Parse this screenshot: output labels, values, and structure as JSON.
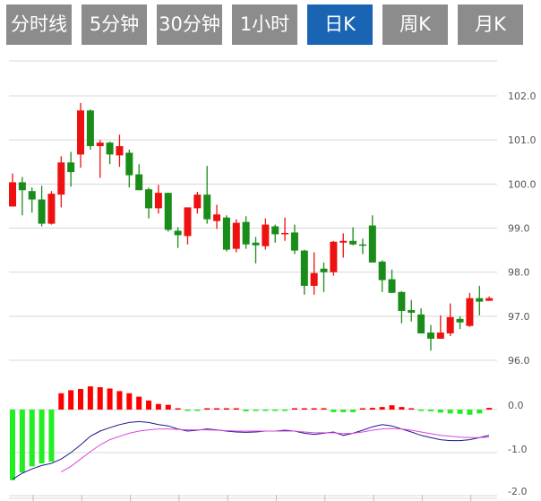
{
  "tabs": [
    {
      "label": "分时线",
      "active": false
    },
    {
      "label": "5分钟",
      "active": false
    },
    {
      "label": "30分钟",
      "active": false
    },
    {
      "label": "1小时",
      "active": false
    },
    {
      "label": "日K",
      "active": true
    },
    {
      "label": "周K",
      "active": false
    },
    {
      "label": "月K",
      "active": false
    }
  ],
  "colors": {
    "up": "#ee1111",
    "down": "#1a8c1a",
    "hist_up": "#ff0000",
    "hist_down": "#22ee22",
    "dif": "#1a1a8c",
    "dea": "#dd44dd",
    "tab": "#8c8c8c",
    "tab_active": "#1a64b4",
    "grid": "#d8d8d8"
  },
  "chart_data": [
    {
      "type": "candlestick",
      "ylim": [
        95.8,
        102.2
      ],
      "yticks": [
        "102.0",
        "101.0",
        "100.0",
        "99.0",
        "98.0",
        "97.0",
        "96.0"
      ],
      "grid": true,
      "ohlc": [
        [
          99.49,
          100.24,
          99.49,
          100.04
        ],
        [
          100.04,
          100.16,
          99.29,
          99.86
        ],
        [
          99.84,
          99.92,
          99.35,
          99.65
        ],
        [
          99.65,
          99.96,
          99.04,
          99.1
        ],
        [
          99.1,
          99.84,
          99.08,
          99.78
        ],
        [
          99.76,
          100.63,
          99.47,
          100.49
        ],
        [
          100.49,
          100.73,
          99.94,
          100.27
        ],
        [
          100.67,
          101.84,
          100.37,
          101.67
        ],
        [
          101.67,
          101.69,
          100.78,
          100.86
        ],
        [
          100.86,
          101.0,
          100.14,
          100.94
        ],
        [
          100.94,
          100.96,
          100.45,
          100.67
        ],
        [
          100.65,
          101.12,
          100.39,
          100.86
        ],
        [
          100.71,
          100.78,
          99.92,
          100.2
        ],
        [
          100.22,
          100.45,
          99.86,
          99.86
        ],
        [
          99.88,
          99.92,
          99.22,
          99.45
        ],
        [
          99.45,
          99.98,
          99.33,
          99.8
        ],
        [
          99.8,
          99.8,
          98.92,
          98.96
        ],
        [
          98.94,
          99.02,
          98.55,
          98.84
        ],
        [
          98.82,
          99.47,
          98.63,
          99.47
        ],
        [
          99.45,
          99.82,
          99.33,
          99.76
        ],
        [
          99.76,
          100.41,
          99.1,
          99.2
        ],
        [
          99.16,
          99.53,
          98.98,
          99.31
        ],
        [
          99.24,
          99.29,
          98.47,
          98.51
        ],
        [
          98.53,
          99.2,
          98.45,
          99.12
        ],
        [
          99.14,
          99.27,
          98.53,
          98.63
        ],
        [
          98.67,
          98.8,
          98.2,
          98.61
        ],
        [
          98.59,
          99.22,
          98.51,
          99.08
        ],
        [
          99.04,
          99.08,
          98.67,
          98.86
        ],
        [
          98.87,
          99.24,
          98.71,
          98.89
        ],
        [
          98.9,
          99.08,
          98.41,
          98.49
        ],
        [
          98.49,
          98.51,
          97.49,
          97.69
        ],
        [
          97.69,
          98.45,
          97.49,
          97.98
        ],
        [
          98.08,
          98.22,
          97.55,
          98.0
        ],
        [
          98.0,
          98.71,
          97.92,
          98.69
        ],
        [
          98.67,
          98.88,
          98.33,
          98.71
        ],
        [
          98.71,
          99.02,
          98.61,
          98.63
        ],
        [
          98.63,
          98.76,
          98.41,
          98.61
        ],
        [
          99.06,
          99.29,
          98.22,
          98.22
        ],
        [
          98.24,
          98.27,
          97.55,
          97.82
        ],
        [
          97.84,
          98.06,
          97.53,
          97.53
        ],
        [
          97.55,
          97.57,
          96.84,
          97.12
        ],
        [
          97.14,
          97.37,
          96.88,
          97.08
        ],
        [
          97.04,
          97.18,
          96.61,
          96.61
        ],
        [
          96.63,
          96.8,
          96.22,
          96.49
        ],
        [
          96.49,
          97.02,
          96.49,
          96.63
        ],
        [
          96.61,
          97.29,
          96.55,
          96.98
        ],
        [
          96.94,
          97.0,
          96.71,
          96.86
        ],
        [
          96.78,
          97.53,
          96.76,
          97.41
        ],
        [
          97.41,
          97.69,
          97.02,
          97.33
        ],
        [
          97.35,
          97.45,
          97.35,
          97.41
        ]
      ]
    },
    {
      "type": "macd",
      "ylim": [
        -2.0,
        0.3
      ],
      "yticks": [
        "0.0",
        "-1.0",
        "-2.0"
      ],
      "histogram": [
        -1.64,
        -1.46,
        -1.32,
        -1.25,
        -1.21,
        0.38,
        0.45,
        0.48,
        0.54,
        0.52,
        0.49,
        0.43,
        0.38,
        0.3,
        0.21,
        0.13,
        0.11,
        0.02,
        -0.02,
        -0.02,
        0.02,
        0,
        0,
        0,
        -0.04,
        -0.03,
        -0.03,
        -0.03,
        -0.02,
        0,
        0.01,
        0.02,
        0,
        -0.06,
        -0.06,
        -0.06,
        0,
        0.04,
        0.06,
        0.1,
        0.06,
        0.02,
        -0.01,
        -0.04,
        -0.07,
        -0.09,
        -0.1,
        -0.12,
        -0.09,
        0.04
      ],
      "dif": [
        -1.62,
        -1.48,
        -1.38,
        -1.3,
        -1.25,
        -1.15,
        -1.0,
        -0.82,
        -0.62,
        -0.5,
        -0.42,
        -0.35,
        -0.3,
        -0.28,
        -0.3,
        -0.35,
        -0.38,
        -0.45,
        -0.5,
        -0.48,
        -0.45,
        -0.47,
        -0.5,
        -0.52,
        -0.53,
        -0.52,
        -0.5,
        -0.5,
        -0.48,
        -0.5,
        -0.55,
        -0.58,
        -0.55,
        -0.52,
        -0.6,
        -0.55,
        -0.48,
        -0.4,
        -0.35,
        -0.38,
        -0.45,
        -0.52,
        -0.6,
        -0.65,
        -0.7,
        -0.72,
        -0.72,
        -0.7,
        -0.65,
        -0.6
      ],
      "dea": [
        null,
        null,
        null,
        null,
        null,
        -1.45,
        -1.32,
        -1.15,
        -0.98,
        -0.82,
        -0.7,
        -0.62,
        -0.55,
        -0.5,
        -0.47,
        -0.45,
        -0.45,
        -0.46,
        -0.47,
        -0.47,
        -0.47,
        -0.48,
        -0.49,
        -0.5,
        -0.5,
        -0.5,
        -0.5,
        -0.5,
        -0.5,
        -0.5,
        -0.52,
        -0.54,
        -0.54,
        -0.54,
        -0.56,
        -0.55,
        -0.52,
        -0.48,
        -0.45,
        -0.44,
        -0.45,
        -0.48,
        -0.52,
        -0.56,
        -0.6,
        -0.62,
        -0.64,
        -0.65,
        -0.65,
        -0.64
      ]
    }
  ]
}
